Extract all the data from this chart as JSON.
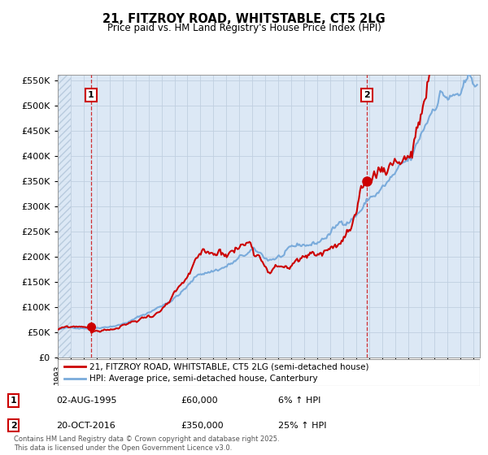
{
  "title": "21, FITZROY ROAD, WHITSTABLE, CT5 2LG",
  "subtitle": "Price paid vs. HM Land Registry's House Price Index (HPI)",
  "legend_line1": "21, FITZROY ROAD, WHITSTABLE, CT5 2LG (semi-detached house)",
  "legend_line2": "HPI: Average price, semi-detached house, Canterbury",
  "annotation1_label": "1",
  "annotation1_date": "02-AUG-1995",
  "annotation1_price": "£60,000",
  "annotation1_hpi": "6% ↑ HPI",
  "annotation2_label": "2",
  "annotation2_date": "20-OCT-2016",
  "annotation2_price": "£350,000",
  "annotation2_hpi": "25% ↑ HPI",
  "footer": "Contains HM Land Registry data © Crown copyright and database right 2025.\nThis data is licensed under the Open Government Licence v3.0.",
  "red_color": "#cc0000",
  "blue_color": "#7aabdb",
  "grid_color": "#c0cfe0",
  "bg_color": "#dce8f5",
  "ylim": [
    0,
    560000
  ],
  "xlim_start": 1993.0,
  "xlim_end": 2025.5,
  "purchase1_x": 1995.58,
  "purchase1_y": 60000,
  "purchase2_x": 2016.8,
  "purchase2_y": 350000,
  "vline1_x": 1995.58,
  "vline2_x": 2016.8,
  "yticks": [
    0,
    50000,
    100000,
    150000,
    200000,
    250000,
    300000,
    350000,
    400000,
    450000,
    500000,
    550000
  ]
}
